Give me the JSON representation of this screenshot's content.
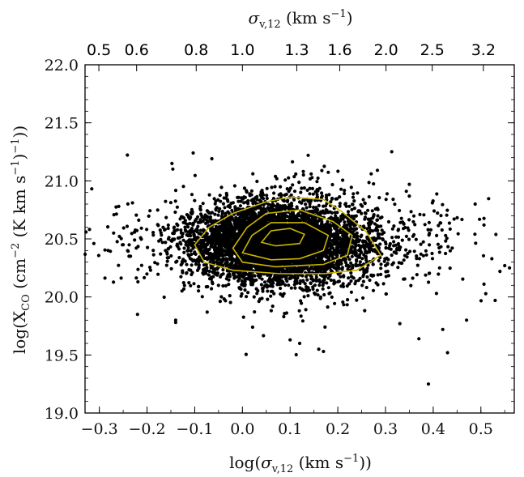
{
  "chart_data": {
    "type": "scatter",
    "title": "",
    "xlabel": "log(σ_v,12 (km s^-1))",
    "ylabel": "log(X_CO (cm^-2 (K km s^-1)^-1))",
    "top_xlabel": "σ_v,12 (km s^-1)",
    "xlim": [
      -0.33,
      0.57
    ],
    "ylim": [
      19.0,
      22.0
    ],
    "x_ticks": [
      -0.3,
      -0.2,
      -0.1,
      0.0,
      0.1,
      0.2,
      0.3,
      0.4,
      0.5
    ],
    "x_tick_labels": [
      "−0.3",
      "−0.2",
      "−0.1",
      "0.0",
      "0.1",
      "0.2",
      "0.3",
      "0.4",
      "0.5"
    ],
    "y_ticks": [
      19.0,
      19.5,
      20.0,
      20.5,
      21.0,
      21.5,
      22.0
    ],
    "y_tick_labels": [
      "19.0",
      "19.5",
      "20.0",
      "20.5",
      "21.0",
      "21.5",
      "22.0"
    ],
    "top_ticks": [
      0.5,
      0.6,
      0.8,
      1.0,
      1.3,
      1.6,
      2.0,
      2.5,
      3.2
    ],
    "top_tick_labels": [
      "0.5",
      "0.6",
      "0.8",
      "1.0",
      "1.3",
      "1.6",
      "2.0",
      "2.5",
      "3.2"
    ],
    "grid": false,
    "point_color": "#000000",
    "contour_color": "#c8b400",
    "cloud": {
      "core": {
        "center": [
          0.07,
          20.47
        ],
        "spread": [
          0.085,
          0.16
        ],
        "count": 4200
      },
      "halo": {
        "center": [
          0.1,
          20.46
        ],
        "spread": [
          0.16,
          0.26
        ],
        "count": 1400
      }
    },
    "outliers": [
      {
        "x": 0.39,
        "y": 19.25
      },
      {
        "x": 0.43,
        "y": 19.52
      },
      {
        "x": 0.16,
        "y": 19.55
      },
      {
        "x": 0.17,
        "y": 19.53
      },
      {
        "x": 0.37,
        "y": 19.64
      },
      {
        "x": 0.42,
        "y": 19.72
      },
      {
        "x": 0.33,
        "y": 19.77
      },
      {
        "x": 0.47,
        "y": 19.8
      },
      {
        "x": 0.53,
        "y": 19.97
      },
      {
        "x": -0.27,
        "y": 20.55
      },
      {
        "x": -0.25,
        "y": 20.45
      },
      {
        "x": -0.22,
        "y": 19.85
      },
      {
        "x": -0.14,
        "y": 19.8
      },
      {
        "x": -0.14,
        "y": 19.78
      },
      {
        "x": 0.55,
        "y": 20.27
      },
      {
        "x": 0.56,
        "y": 20.25
      },
      {
        "x": 0.54,
        "y": 20.22
      },
      {
        "x": 0.27,
        "y": 21.06
      },
      {
        "x": 0.35,
        "y": 20.97
      },
      {
        "x": 0.1,
        "y": 19.63
      },
      {
        "x": 0.12,
        "y": 19.6
      }
    ],
    "contours": [
      [
        [
          -0.1,
          20.45
        ],
        [
          -0.07,
          20.6
        ],
        [
          -0.02,
          20.72
        ],
        [
          0.05,
          20.82
        ],
        [
          0.1,
          20.86
        ],
        [
          0.17,
          20.84
        ],
        [
          0.21,
          20.73
        ],
        [
          0.26,
          20.56
        ],
        [
          0.29,
          20.36
        ],
        [
          0.24,
          20.23
        ],
        [
          0.17,
          20.2
        ],
        [
          0.08,
          20.2
        ],
        [
          -0.02,
          20.23
        ],
        [
          -0.08,
          20.3
        ],
        [
          -0.1,
          20.45
        ]
      ],
      [
        [
          -0.02,
          20.42
        ],
        [
          0.01,
          20.6
        ],
        [
          0.05,
          20.72
        ],
        [
          0.12,
          20.75
        ],
        [
          0.19,
          20.65
        ],
        [
          0.23,
          20.53
        ],
        [
          0.22,
          20.36
        ],
        [
          0.17,
          20.28
        ],
        [
          0.07,
          20.26
        ],
        [
          0.0,
          20.3
        ],
        [
          -0.02,
          20.42
        ]
      ],
      [
        [
          0.0,
          20.38
        ],
        [
          0.02,
          20.53
        ],
        [
          0.06,
          20.64
        ],
        [
          0.13,
          20.64
        ],
        [
          0.18,
          20.53
        ],
        [
          0.17,
          20.4
        ],
        [
          0.12,
          20.33
        ],
        [
          0.06,
          20.32
        ],
        [
          0.0,
          20.38
        ]
      ],
      [
        [
          0.04,
          20.47
        ],
        [
          0.06,
          20.57
        ],
        [
          0.1,
          20.59
        ],
        [
          0.13,
          20.54
        ],
        [
          0.12,
          20.46
        ],
        [
          0.07,
          20.44
        ],
        [
          0.04,
          20.47
        ]
      ]
    ]
  }
}
